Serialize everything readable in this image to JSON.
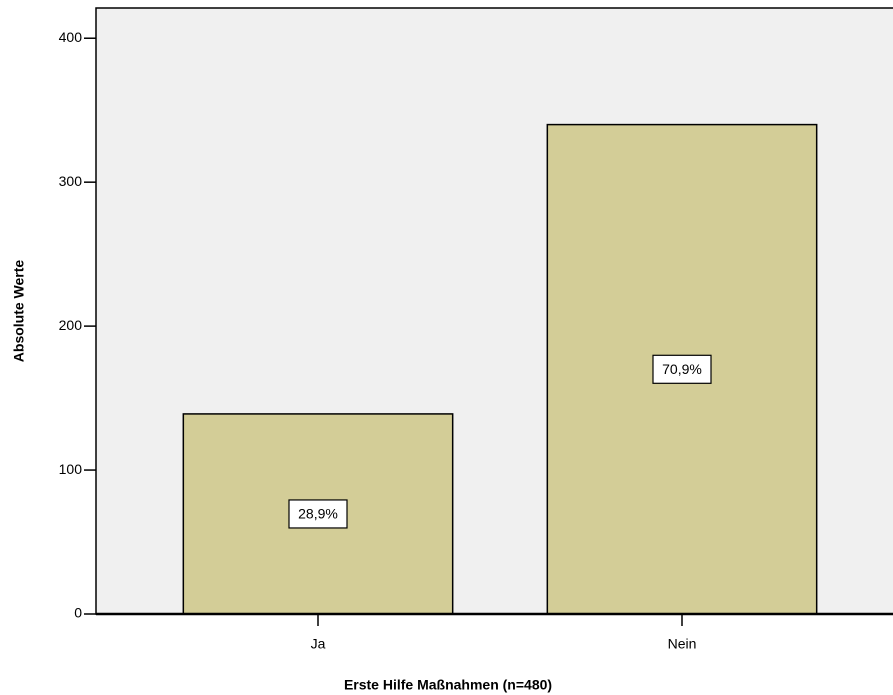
{
  "chart_data": {
    "type": "bar",
    "x_label": "Erste Hilfe Maßnahmen (n=480)",
    "y_label": "Absolute Werte",
    "categories": [
      "Ja",
      "Nein"
    ],
    "values": [
      139,
      340
    ],
    "percent_values": [
      28.9,
      70.9
    ],
    "percent_labels": [
      "28,9%",
      "70,9%"
    ],
    "color": "#d3cd97",
    "ylim": [
      0,
      421
    ],
    "yticks": [
      0,
      100,
      200,
      300,
      400
    ]
  }
}
